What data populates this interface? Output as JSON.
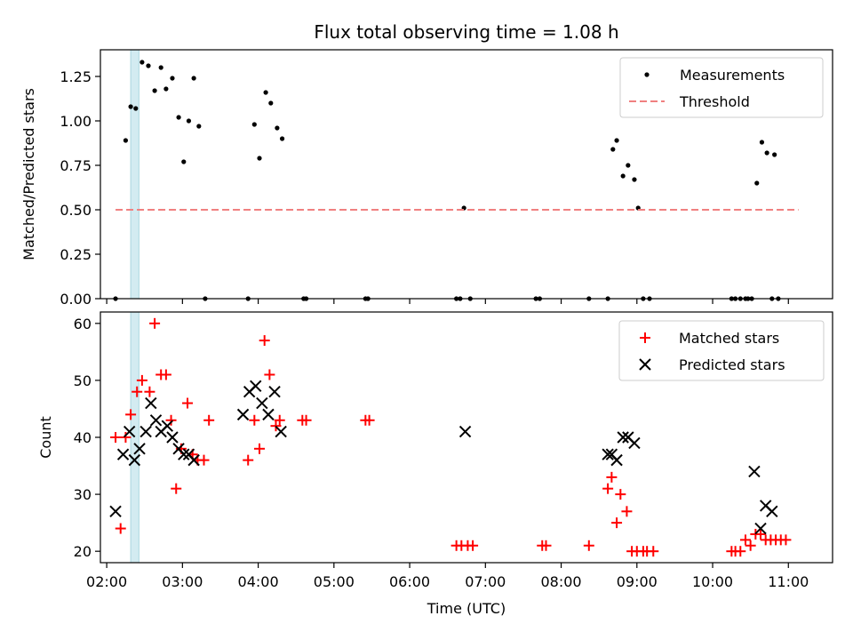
{
  "chart_data": [
    {
      "type": "scatter",
      "title": "Flux total observing time = 1.08 h",
      "xlabel": "",
      "ylabel": "Matched/Predicted stars",
      "x_ticks": [
        "02:00",
        "03:00",
        "04:00",
        "05:00",
        "06:00",
        "07:00",
        "08:00",
        "09:00",
        "10:00",
        "11:00"
      ],
      "y_ticks": [
        "0.00",
        "0.25",
        "0.50",
        "0.75",
        "1.00",
        "1.25"
      ],
      "xlim": [
        "01:55",
        "11:35"
      ],
      "ylim": [
        0,
        1.4
      ],
      "highlight_band": [
        "02:19",
        "02:25:30"
      ],
      "highlight_color": "#d3ebf1",
      "legend_position": "top-right",
      "series": [
        {
          "name": "Measurements",
          "kind": "points",
          "color": "#000000",
          "x": [
            "02:07",
            "02:15",
            "02:19",
            "02:23",
            "02:28",
            "02:33",
            "02:38",
            "02:43",
            "02:47",
            "02:52",
            "02:57",
            "03:01",
            "03:05",
            "03:09",
            "03:13",
            "03:18",
            "03:52",
            "03:57",
            "04:01",
            "04:06",
            "04:10",
            "04:15",
            "04:19",
            "04:36",
            "04:38",
            "05:25",
            "05:27",
            "06:37",
            "06:40",
            "06:43",
            "06:48",
            "07:40",
            "07:43",
            "08:22",
            "08:37",
            "08:41",
            "08:44",
            "08:49",
            "08:53",
            "08:58",
            "09:01",
            "09:05",
            "09:10",
            "10:15",
            "10:18",
            "10:22",
            "10:26",
            "10:28",
            "10:31",
            "10:35",
            "10:39",
            "10:43",
            "10:47",
            "10:49",
            "10:52"
          ],
          "y": [
            0,
            0.89,
            1.08,
            1.07,
            1.33,
            1.31,
            1.17,
            1.3,
            1.18,
            1.24,
            1.02,
            0.77,
            1.0,
            1.24,
            0.97,
            0,
            0,
            0.98,
            0.79,
            1.16,
            1.1,
            0.96,
            0.9,
            0,
            0,
            0,
            0,
            0,
            0,
            0.51,
            0,
            0,
            0,
            0,
            0,
            0.84,
            0.89,
            0.69,
            0.75,
            0.67,
            0.51,
            0,
            0,
            0,
            0,
            0,
            0,
            0,
            0,
            0.65,
            0.88,
            0.82,
            0,
            0.81,
            0
          ]
        },
        {
          "name": "Threshold",
          "kind": "dashed-line",
          "color": "#f08080",
          "x": [
            "02:07",
            "11:08"
          ],
          "y": [
            0.5,
            0.5
          ]
        }
      ]
    },
    {
      "type": "scatter",
      "title": "",
      "xlabel": "Time (UTC)",
      "ylabel": "Count",
      "x_ticks": [
        "02:00",
        "03:00",
        "04:00",
        "05:00",
        "06:00",
        "07:00",
        "08:00",
        "09:00",
        "10:00",
        "11:00"
      ],
      "y_ticks": [
        "20",
        "30",
        "40",
        "50",
        "60"
      ],
      "xlim": [
        "01:55",
        "11:35"
      ],
      "ylim": [
        18,
        62
      ],
      "highlight_band": [
        "02:19",
        "02:25:30"
      ],
      "highlight_color": "#d3ebf1",
      "legend_position": "top-right",
      "series": [
        {
          "name": "Matched stars",
          "marker": "plus",
          "color": "#ff0000",
          "x": [
            "02:07",
            "02:11",
            "02:15",
            "02:19",
            "02:24",
            "02:28",
            "02:34",
            "02:38",
            "02:43",
            "02:47",
            "02:51",
            "02:55",
            "02:59",
            "03:04",
            "03:08",
            "03:12",
            "03:17",
            "03:21",
            "03:52",
            "03:57",
            "04:01",
            "04:05",
            "04:09",
            "04:14",
            "04:17",
            "04:35",
            "04:38",
            "05:25",
            "05:28",
            "06:37",
            "06:41",
            "06:46",
            "06:50",
            "07:45",
            "07:48",
            "08:22",
            "08:37",
            "08:40",
            "08:44",
            "08:47",
            "08:52",
            "08:56",
            "09:00",
            "09:05",
            "09:08",
            "09:13",
            "10:15",
            "10:18",
            "10:22",
            "10:26",
            "10:30",
            "10:34",
            "10:38",
            "10:42",
            "10:46",
            "10:50",
            "10:54",
            "10:58"
          ],
          "y": [
            40,
            24,
            40,
            44,
            48,
            50,
            48,
            60,
            51,
            51,
            43,
            31,
            38,
            46,
            37,
            36,
            36,
            43,
            36,
            43,
            38,
            57,
            51,
            42,
            43,
            43,
            43,
            43,
            43,
            21,
            21,
            21,
            21,
            21,
            21,
            21,
            31,
            33,
            25,
            30,
            27,
            20,
            20,
            20,
            20,
            20,
            20,
            20,
            20,
            22,
            21,
            23,
            23,
            22,
            22,
            22,
            22,
            22
          ]
        },
        {
          "name": "Predicted stars",
          "marker": "x",
          "color": "#000000",
          "x": [
            "02:07",
            "02:13",
            "02:18",
            "02:22",
            "02:26",
            "02:31",
            "02:35",
            "02:39",
            "02:43",
            "02:48",
            "02:52",
            "02:57",
            "03:01",
            "03:05",
            "03:09",
            "03:48",
            "03:53",
            "03:58",
            "04:03",
            "04:08",
            "04:13",
            "04:18",
            "06:44",
            "08:37",
            "08:40",
            "08:44",
            "08:49",
            "08:53",
            "08:58",
            "10:33",
            "10:38",
            "10:42",
            "10:47"
          ],
          "y": [
            27,
            37,
            41,
            36,
            38,
            41,
            46,
            43,
            41,
            42,
            40,
            38,
            37,
            37,
            36,
            44,
            48,
            49,
            46,
            44,
            48,
            41,
            41,
            37,
            37,
            36,
            40,
            40,
            39,
            34,
            24,
            28,
            27
          ]
        }
      ]
    }
  ]
}
